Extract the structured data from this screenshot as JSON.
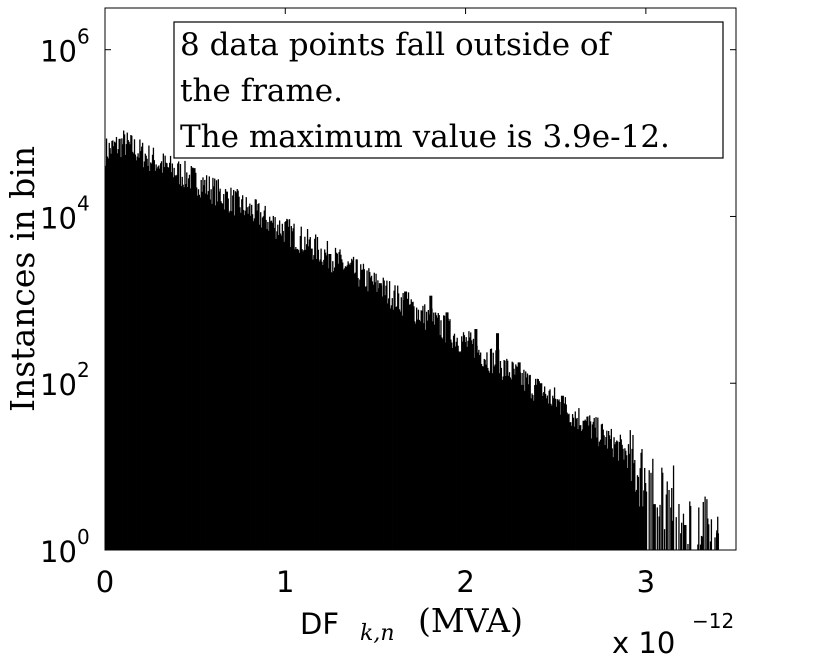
{
  "chart_data": {
    "type": "bar",
    "ylabel": "Instances in bin",
    "xlabel": {
      "prefix": "DF",
      "subscript": "k,n",
      "unit": "(MVA)"
    },
    "x_multiplier": {
      "base": "x 10",
      "exponent": "−12"
    },
    "y_scale": "log",
    "xlim": [
      0,
      3.5
    ],
    "ylim_log10": [
      0,
      6.5
    ],
    "x_ticks": [
      {
        "value": 0,
        "label": "0"
      },
      {
        "value": 1,
        "label": "1"
      },
      {
        "value": 2,
        "label": "2"
      },
      {
        "value": 3,
        "label": "3"
      }
    ],
    "y_ticks": [
      {
        "exp": 0,
        "base": "10",
        "sup": "0"
      },
      {
        "exp": 2,
        "base": "10",
        "sup": "2"
      },
      {
        "exp": 4,
        "base": "10",
        "sup": "4"
      },
      {
        "exp": 6,
        "base": "10",
        "sup": "6"
      }
    ],
    "annotation": [
      "8 data points fall outside of",
      "the frame.",
      "The maximum value is 3.9e-12."
    ],
    "envelope_log10": {
      "x": [
        0.0,
        0.1,
        0.3,
        0.5,
        1.0,
        1.5,
        2.0,
        2.5,
        3.0,
        3.3,
        3.4
      ],
      "y": [
        4.8,
        4.9,
        4.65,
        4.45,
        3.85,
        3.2,
        2.5,
        1.8,
        1.0,
        0.4,
        0.2
      ]
    },
    "spikes": [
      {
        "x": 1.03,
        "log10_count": 3.5
      },
      {
        "x": 1.25,
        "log10_count": 3.55
      },
      {
        "x": 1.37,
        "log10_count": 3.35
      },
      {
        "x": 1.53,
        "log10_count": 3.2
      },
      {
        "x": 1.67,
        "log10_count": 3.1
      },
      {
        "x": 1.81,
        "log10_count": 3.05
      },
      {
        "x": 1.9,
        "log10_count": 2.85
      },
      {
        "x": 2.06,
        "log10_count": 2.65
      },
      {
        "x": 2.18,
        "log10_count": 2.6
      },
      {
        "x": 2.3,
        "log10_count": 2.25
      },
      {
        "x": 2.42,
        "log10_count": 2.0
      },
      {
        "x": 2.54,
        "log10_count": 1.85
      },
      {
        "x": 2.66,
        "log10_count": 1.55
      },
      {
        "x": 2.75,
        "log10_count": 1.3
      },
      {
        "x": 2.85,
        "log10_count": 1.05
      },
      {
        "x": 2.95,
        "log10_count": 0.7
      },
      {
        "x": 3.05,
        "log10_count": 0.55
      },
      {
        "x": 3.15,
        "log10_count": 0.35
      },
      {
        "x": 3.22,
        "log10_count": 0.3
      },
      {
        "x": 3.4,
        "log10_count": 0.2
      }
    ],
    "bar_color": "#000000",
    "grid": false
  }
}
